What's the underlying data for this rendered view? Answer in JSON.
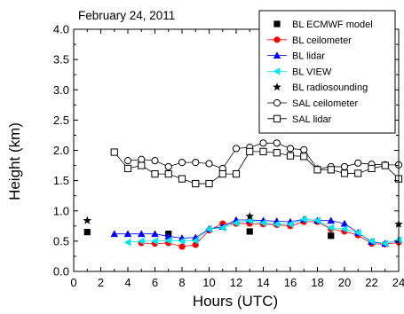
{
  "chart_data": {
    "type": "scatter",
    "title": "February 24, 2011",
    "xlabel": "Hours (UTC)",
    "ylabel": "Height (km)",
    "xlim": [
      0,
      24
    ],
    "ylim": [
      0.0,
      4.0
    ],
    "xticks": [
      0,
      2,
      4,
      6,
      8,
      10,
      12,
      14,
      16,
      18,
      20,
      22,
      24
    ],
    "yticks": [
      0.0,
      0.5,
      1.0,
      1.5,
      2.0,
      2.5,
      3.0,
      3.5,
      4.0
    ],
    "ytick_labels": [
      "0.0",
      "0.5",
      "1.0",
      "1.5",
      "2.0",
      "2.5",
      "3.0",
      "3.5",
      "4.0"
    ],
    "grid": false,
    "legend_position": "top-right",
    "series": [
      {
        "name": "BL ECMWF model",
        "marker": "square-filled",
        "color": "#000000",
        "line": false,
        "x": [
          1,
          7,
          13,
          19
        ],
        "y": [
          0.65,
          0.62,
          0.66,
          0.59
        ]
      },
      {
        "name": "BL ceilometer",
        "marker": "circle-filled",
        "color": "#ff0000",
        "line": true,
        "x": [
          5,
          6,
          7,
          8,
          9,
          10,
          11,
          12,
          13,
          14,
          15,
          16,
          17,
          18,
          19,
          20,
          21,
          22,
          23,
          24
        ],
        "y": [
          0.47,
          0.46,
          0.47,
          0.41,
          0.44,
          0.68,
          0.79,
          0.79,
          0.79,
          0.78,
          0.77,
          0.75,
          0.82,
          0.82,
          0.7,
          0.66,
          0.6,
          0.46,
          0.45,
          0.48
        ]
      },
      {
        "name": "BL lidar",
        "marker": "triangle-up-filled",
        "color": "#0000ff",
        "line": true,
        "x": [
          3,
          4,
          5,
          6,
          7,
          8,
          9,
          10,
          11,
          12,
          13,
          14,
          15,
          16,
          17,
          18,
          19,
          20,
          21,
          22,
          23,
          24
        ],
        "y": [
          0.62,
          0.62,
          0.62,
          0.62,
          0.58,
          0.55,
          0.56,
          0.7,
          0.74,
          0.85,
          0.85,
          0.84,
          0.83,
          0.82,
          0.86,
          0.84,
          0.84,
          0.79,
          0.64,
          0.49,
          0.46,
          0.52
        ]
      },
      {
        "name": "BL VIEW",
        "marker": "triangle-left-filled",
        "color": "#00e5ee",
        "line": true,
        "x": [
          4,
          5,
          6,
          7,
          8,
          9,
          10,
          11,
          12,
          13,
          14,
          15,
          16,
          17,
          18,
          19,
          20,
          21,
          22,
          23,
          24
        ],
        "y": [
          0.48,
          0.5,
          0.5,
          0.51,
          0.5,
          0.51,
          0.7,
          0.72,
          0.8,
          0.84,
          0.8,
          0.78,
          0.78,
          0.86,
          0.84,
          0.72,
          0.7,
          0.64,
          0.5,
          0.46,
          0.52
        ]
      },
      {
        "name": "BL radiosounding",
        "marker": "star",
        "color": "#000000",
        "line": false,
        "x": [
          1,
          13,
          24
        ],
        "y": [
          0.84,
          0.91,
          0.78
        ]
      },
      {
        "name": "SAL ceilometer",
        "marker": "circle-open",
        "color": "#000000",
        "line": true,
        "x": [
          4,
          5,
          6,
          7,
          8,
          9,
          10,
          11,
          12,
          13,
          14,
          15,
          16,
          17,
          18,
          19,
          20,
          21,
          22,
          23,
          24
        ],
        "y": [
          1.83,
          1.85,
          1.83,
          1.73,
          1.8,
          1.8,
          1.78,
          1.7,
          2.03,
          2.05,
          2.12,
          2.12,
          2.03,
          2.01,
          1.69,
          1.73,
          1.73,
          1.79,
          1.77,
          1.76,
          1.76
        ]
      },
      {
        "name": "SAL lidar",
        "marker": "square-open",
        "color": "#000000",
        "line": true,
        "x": [
          3,
          4,
          5,
          6,
          7,
          8,
          9,
          10,
          11,
          12,
          13,
          14,
          15,
          16,
          17,
          18,
          19,
          20,
          21,
          22,
          23,
          24
        ],
        "y": [
          1.97,
          1.7,
          1.75,
          1.61,
          1.61,
          1.53,
          1.45,
          1.45,
          1.61,
          1.61,
          1.98,
          1.98,
          1.96,
          1.91,
          1.9,
          1.68,
          1.68,
          1.62,
          1.62,
          1.7,
          1.75,
          1.53
        ]
      }
    ]
  }
}
